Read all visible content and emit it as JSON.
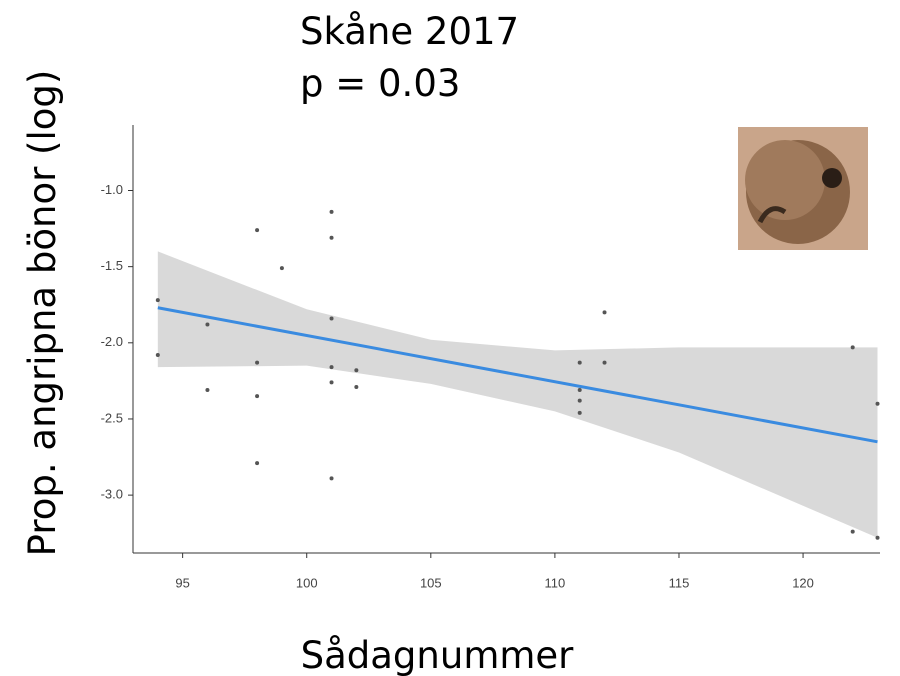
{
  "chart_data": {
    "type": "scatter",
    "title": "Skåne 2017",
    "subtitle": "p = 0.03",
    "x_label": "Sådagnummer",
    "y_label": "Prop. angripna bönor (log)",
    "x": [
      94,
      94,
      96,
      96,
      98,
      98,
      98,
      98,
      99,
      101,
      101,
      101,
      101,
      101,
      101,
      102,
      102,
      111,
      111,
      111,
      111,
      112,
      112,
      122,
      122,
      123,
      123
    ],
    "values": [
      -1.72,
      -2.08,
      -1.88,
      -2.31,
      -1.26,
      -2.13,
      -2.35,
      -2.79,
      -1.51,
      -1.14,
      -1.31,
      -1.84,
      -2.16,
      -2.26,
      -2.89,
      -2.18,
      -2.29,
      -2.13,
      -2.31,
      -2.38,
      -2.46,
      -1.8,
      -2.13,
      -2.03,
      -3.24,
      -2.4,
      -3.28
    ],
    "color": "#555555",
    "fit": {
      "x": [
        94,
        123
      ],
      "values": [
        -1.77,
        -2.65
      ],
      "color": "#3a8be0"
    },
    "band": {
      "x": [
        94,
        100,
        105,
        110,
        115,
        123
      ],
      "lower": [
        -2.16,
        -2.15,
        -2.27,
        -2.45,
        -2.72,
        -3.28
      ],
      "upper": [
        -1.4,
        -1.78,
        -1.98,
        -2.05,
        -2.03,
        -2.03
      ],
      "color": "#d9d9d9"
    },
    "xlim": [
      93,
      123.1
    ],
    "ylim": [
      -3.38,
      -0.57
    ],
    "xticks": [
      95,
      100,
      105,
      110,
      115,
      120
    ],
    "yticks": [
      {
        "value": -1,
        "label": "-1.0"
      },
      -1.5,
      {
        "value": -2,
        "label": "-2.0"
      },
      -2.5,
      {
        "value": -3,
        "label": "-3.0"
      }
    ]
  }
}
